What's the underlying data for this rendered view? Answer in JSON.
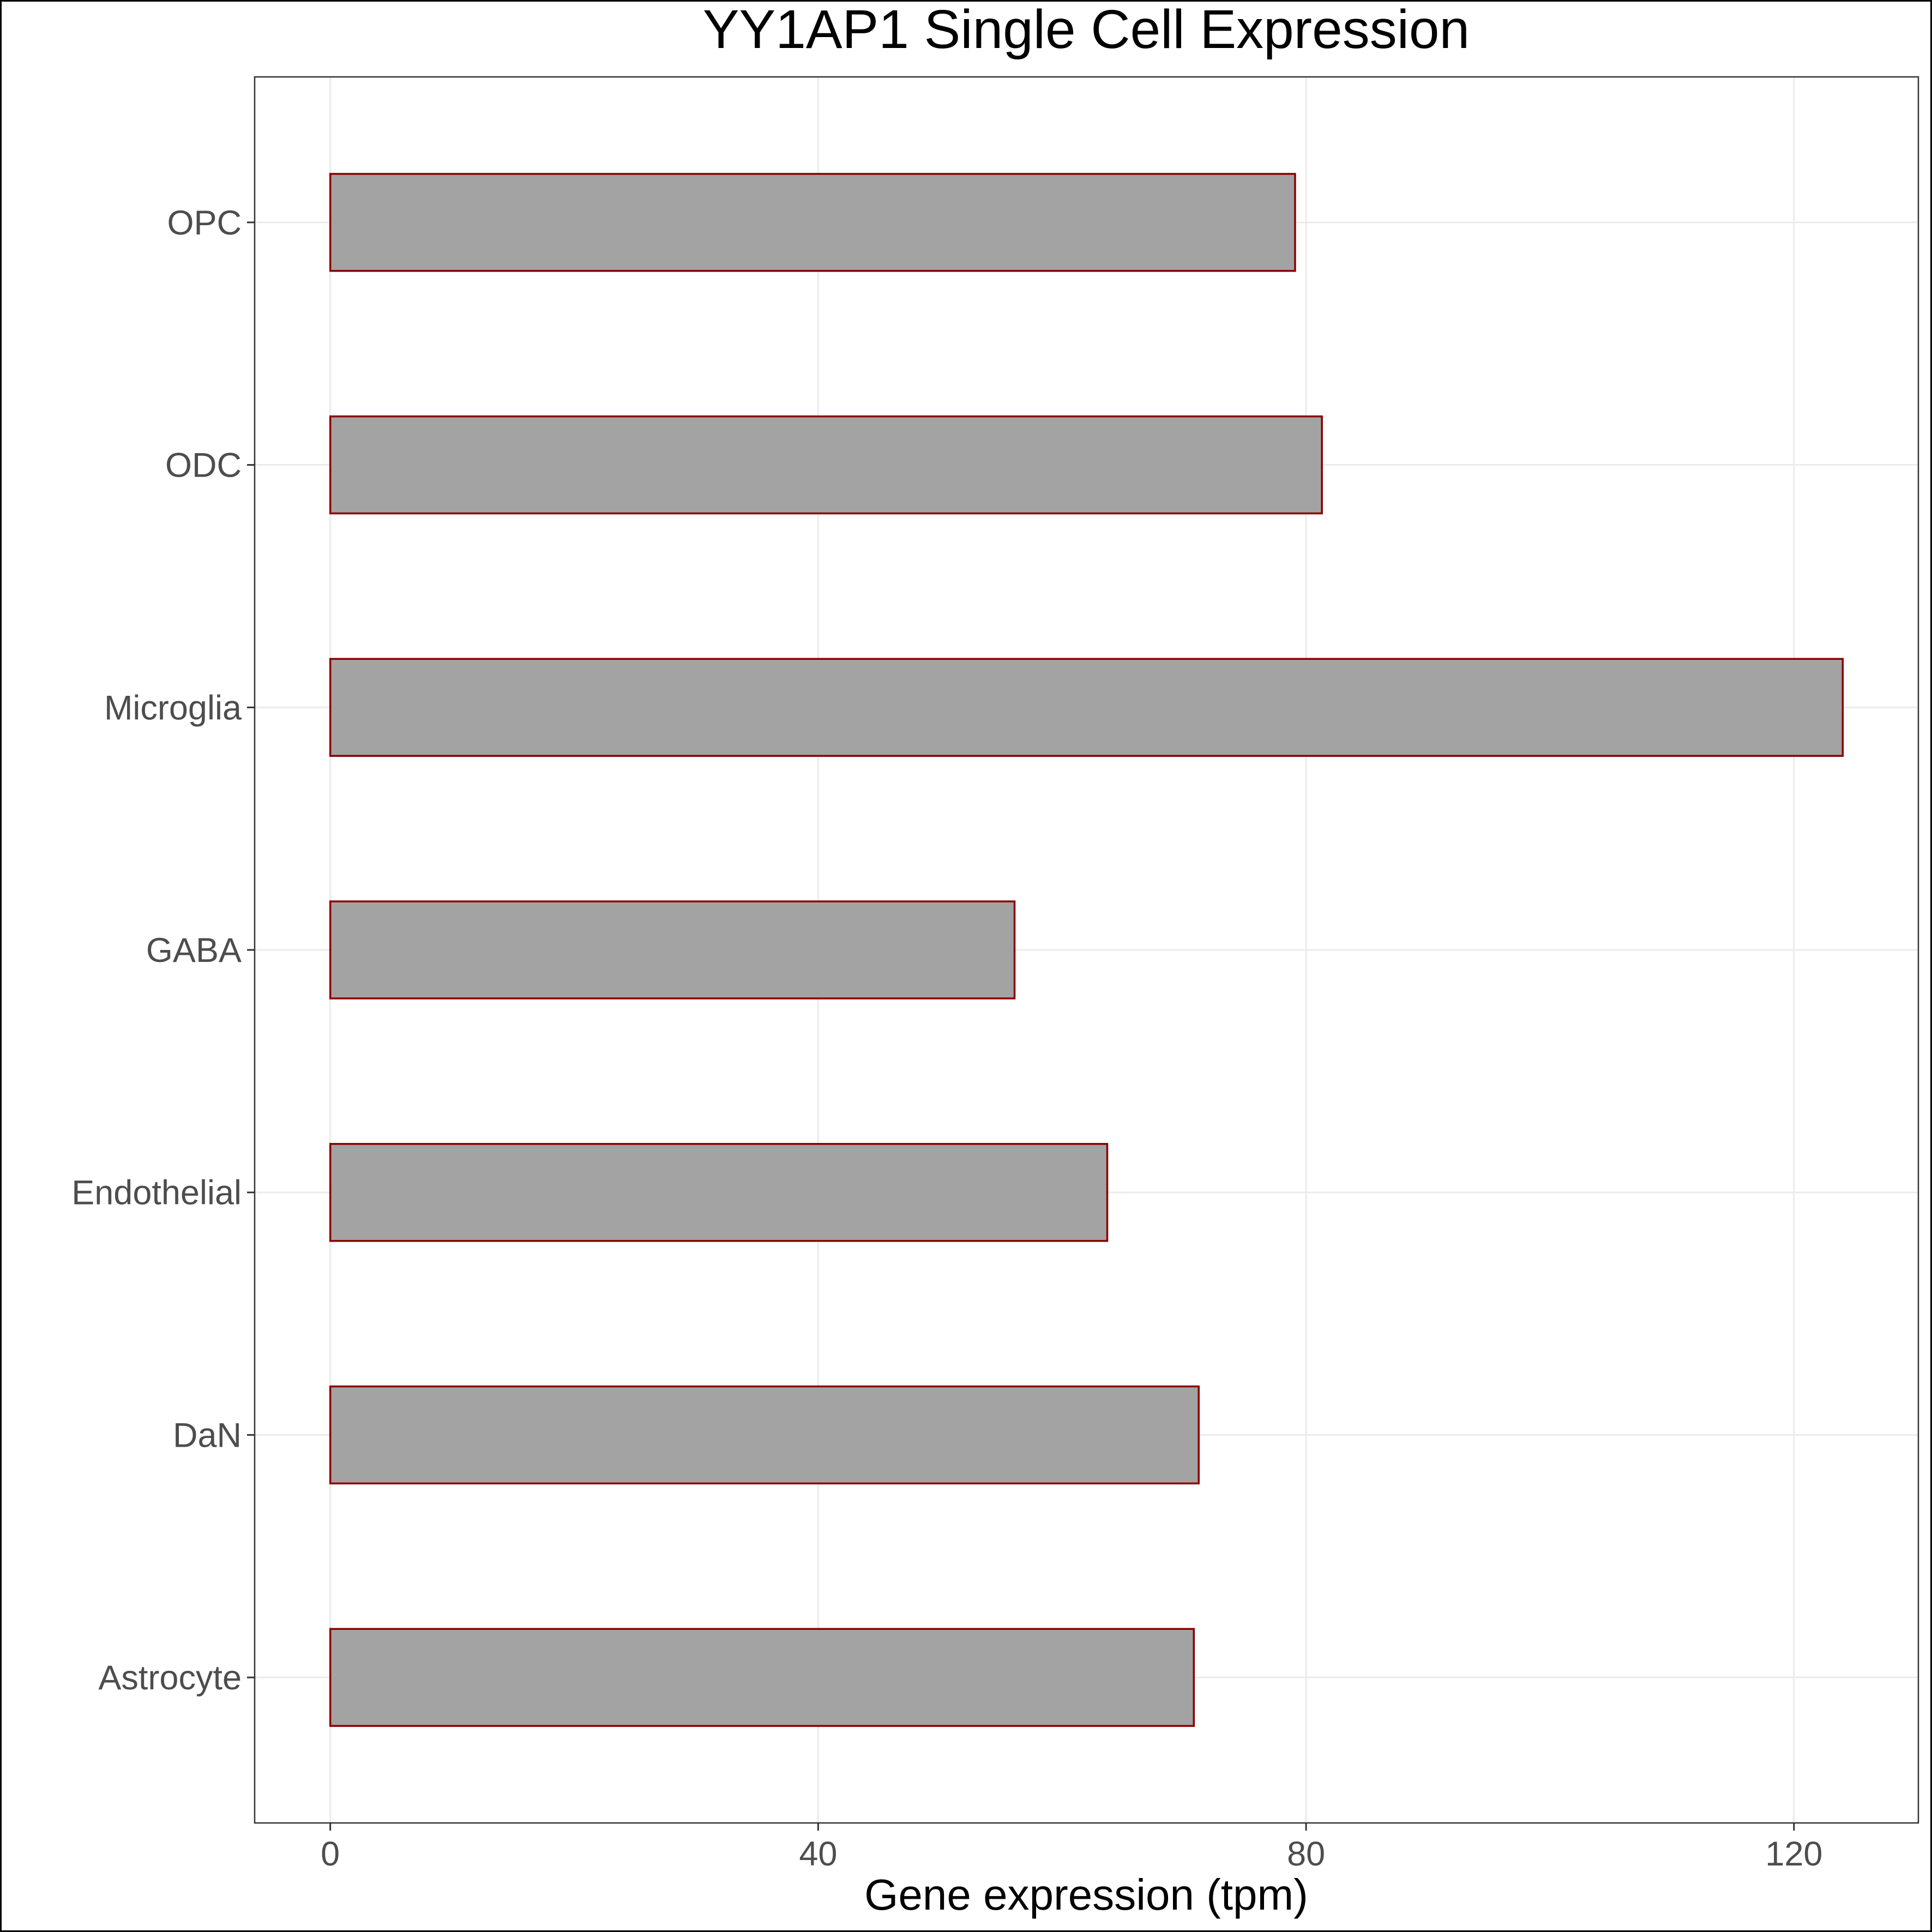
{
  "chart_data": {
    "type": "bar",
    "orientation": "horizontal",
    "title": "YY1AP1 Single Cell Expression",
    "xlabel": "Gene expression (tpm)",
    "ylabel": "",
    "categories": [
      "Astrocyte",
      "DaN",
      "Endothelial",
      "GABA",
      "Microglia",
      "ODC",
      "OPC"
    ],
    "values": [
      70.8,
      71.2,
      63.7,
      56.1,
      124.0,
      81.3,
      79.1
    ],
    "xlim": [
      -6.2,
      130.2
    ],
    "xticks": [
      0,
      40,
      80,
      120
    ],
    "xtick_labels": [
      "0",
      "40",
      "80",
      "120"
    ],
    "grid": true,
    "legend": "none",
    "colors": {
      "bar_fill": "#a3a3a3",
      "bar_outline": "#8b0000",
      "grid": "#ebebeb",
      "panel_border": "#333333",
      "tick_text": "#4d4d4d",
      "title_text": "#000000"
    }
  }
}
